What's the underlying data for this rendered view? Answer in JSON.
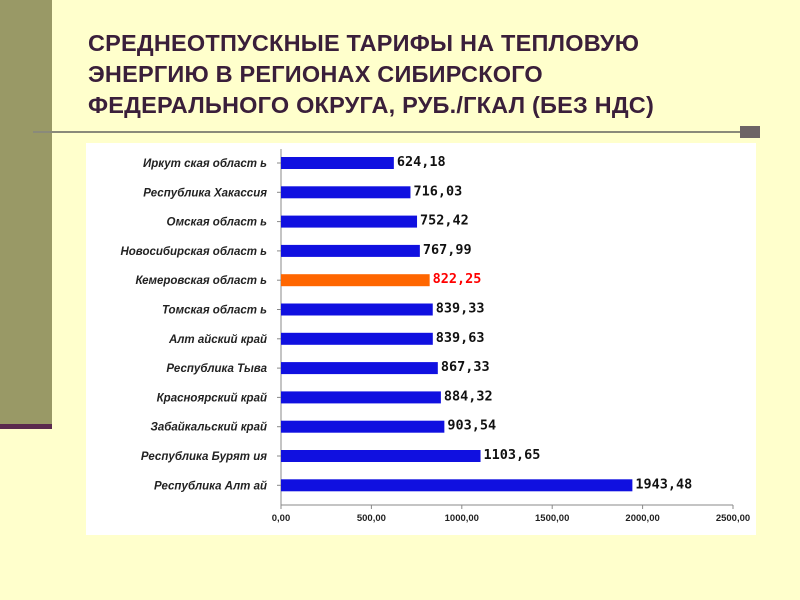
{
  "title_lines": [
    "СРЕДНЕОТПУСКНЫЕ ТАРИФЫ НА ТЕПЛОВУЮ",
    "ЭНЕРГИЮ В РЕГИОНАХ СИБИРСКОГО",
    "ФЕДЕРАЛЬНОГО ОКРУГА, РУБ./ГКАЛ (БЕЗ НДС)"
  ],
  "colors": {
    "background": "#FFFFCC",
    "bar": "#1010E0",
    "highlight_bar": "#FF6600",
    "highlight_label": "#FF0000",
    "title": "#3A1F3A"
  },
  "chart_data": {
    "type": "bar",
    "orientation": "horizontal",
    "categories": [
      "Иркут ская област ь",
      "Республика Хакассия",
      "Омская област ь",
      "Новосибирская област ь",
      "Кемеровская област ь",
      "Томская област ь",
      "Алт айский край",
      "Республика Тыва",
      "Красноярский край",
      "Забайкальский край",
      "Республика Бурят ия",
      "Республика Алт ай"
    ],
    "values": [
      624.18,
      716.03,
      752.42,
      767.99,
      822.25,
      839.33,
      839.63,
      867.33,
      884.32,
      903.54,
      1103.65,
      1943.48
    ],
    "value_labels": [
      "624,18",
      "716,03",
      "752,42",
      "767,99",
      "822,25",
      "839,33",
      "839,63",
      "867,33",
      "884,32",
      "903,54",
      "1103,65",
      "1943,48"
    ],
    "highlight_index": 4,
    "xlim": [
      0,
      2500
    ],
    "x_ticks": [
      0,
      500,
      1000,
      1500,
      2000,
      2500
    ],
    "x_tick_labels": [
      "0,00",
      "500,00",
      "1000,00",
      "1500,00",
      "2000,00",
      "2500,00"
    ],
    "grid": false,
    "legend": "none"
  }
}
